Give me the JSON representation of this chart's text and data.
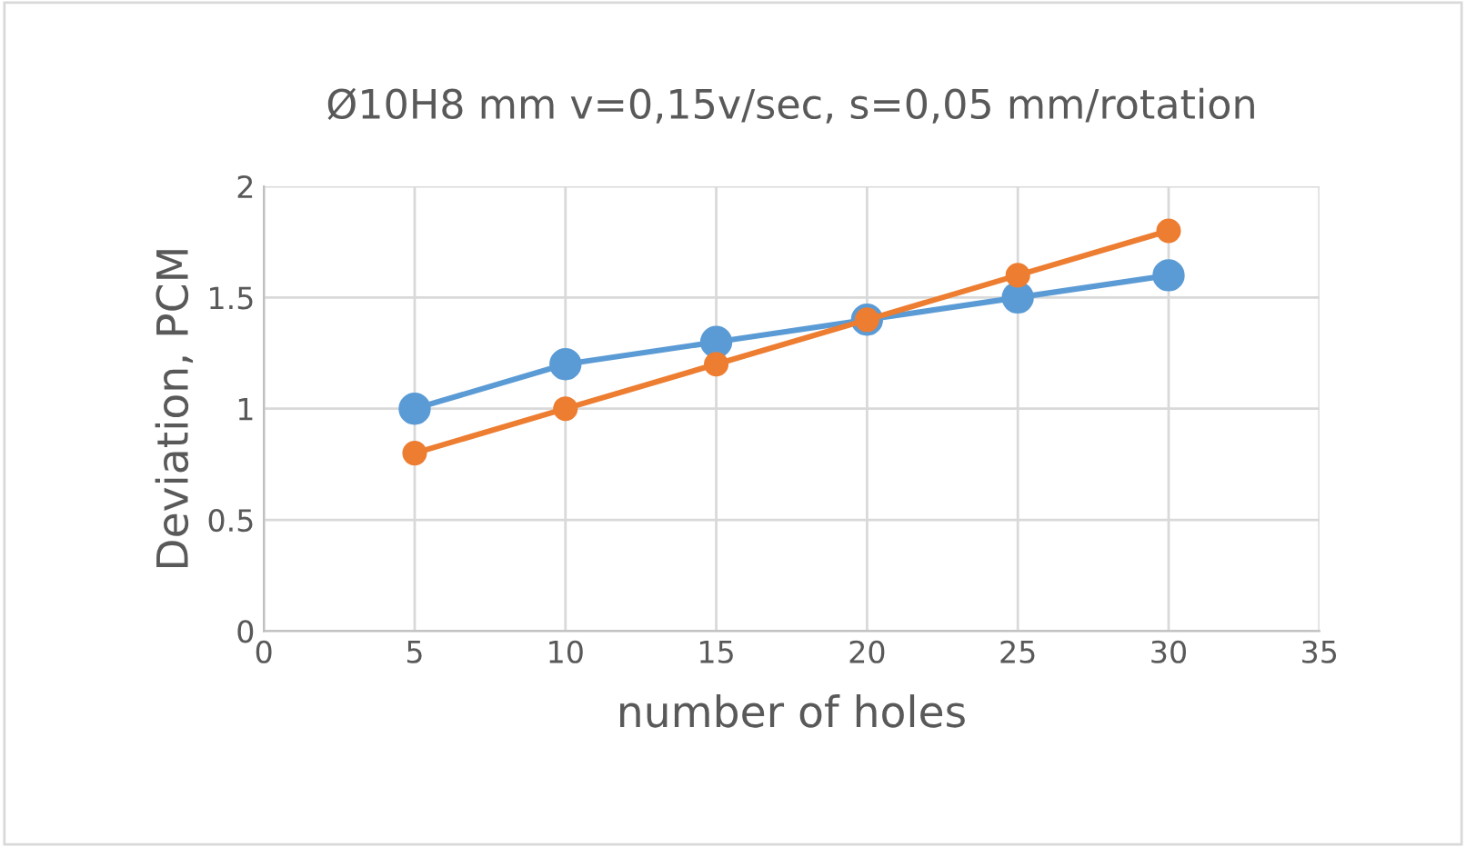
{
  "chart_data": {
    "type": "line",
    "title": "Ø10H8 mm v=0,15v/sec, s=0,05 mm/rotation",
    "xlabel": "number of holes",
    "ylabel": "Deviation, PCM",
    "x": [
      5,
      10,
      15,
      20,
      25,
      30
    ],
    "series": [
      {
        "color": "#5b9bd5",
        "values": [
          1.0,
          1.2,
          1.3,
          1.4,
          1.5,
          1.6
        ]
      },
      {
        "color": "#ed7d31",
        "values": [
          0.8,
          1.0,
          1.2,
          1.4,
          1.6,
          1.8
        ]
      }
    ],
    "xlim": [
      0,
      35
    ],
    "xticks": [
      0,
      5,
      10,
      15,
      20,
      25,
      30,
      35
    ],
    "ylim": [
      0,
      2
    ],
    "yticks": [
      0,
      0.5,
      1,
      1.5,
      2
    ],
    "grid": true,
    "legend": false,
    "marker": "circle",
    "line_style": "solid"
  }
}
